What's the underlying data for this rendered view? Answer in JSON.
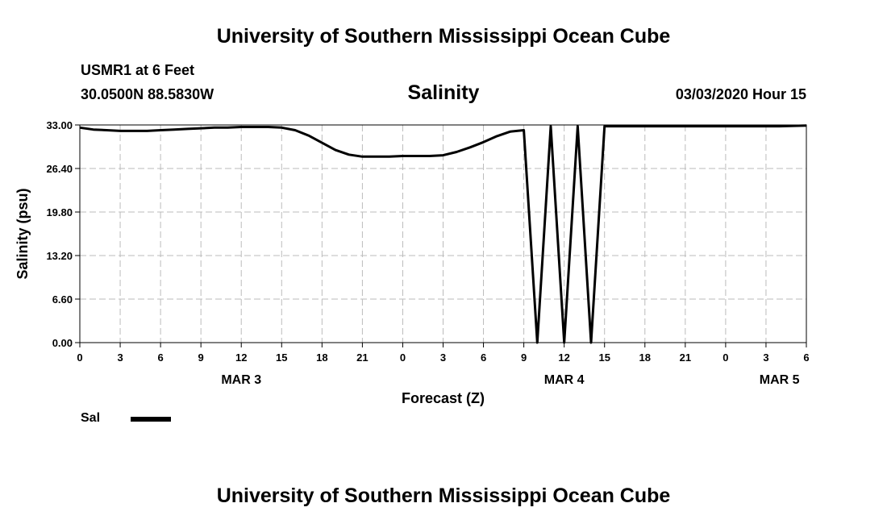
{
  "header": {
    "title": "University of Southern Mississippi Ocean Cube",
    "station": "USMR1 at 6 Feet",
    "coords": "30.0500N 88.5830W",
    "datetime": "03/03/2020 Hour 15",
    "footer_title": "University of Southern Mississippi Ocean Cube"
  },
  "chart_data": {
    "type": "line",
    "title": "Salinity",
    "xlabel": "Forecast (Z)",
    "ylabel": "Salinity (psu)",
    "ylim": [
      0,
      33
    ],
    "y_ticks": [
      "0.00",
      "6.60",
      "13.20",
      "19.80",
      "26.40",
      "33.00"
    ],
    "xlim_hours": [
      0,
      54
    ],
    "x_ticks": [
      "0",
      "3",
      "6",
      "9",
      "12",
      "15",
      "18",
      "21",
      "0",
      "3",
      "6",
      "9",
      "12",
      "15",
      "18",
      "21",
      "0",
      "3",
      "6"
    ],
    "date_labels": [
      {
        "label": "MAR 3",
        "hour": 12
      },
      {
        "label": "MAR 4",
        "hour": 36
      },
      {
        "label": "MAR 5",
        "hour": 52
      }
    ],
    "grid": true,
    "legend": {
      "position": "bottom-left"
    },
    "series": [
      {
        "name": "Sal",
        "color": "#000000",
        "points": [
          [
            0,
            32.6
          ],
          [
            1,
            32.3
          ],
          [
            2,
            32.2
          ],
          [
            3,
            32.1
          ],
          [
            4,
            32.1
          ],
          [
            5,
            32.1
          ],
          [
            6,
            32.2
          ],
          [
            7,
            32.3
          ],
          [
            8,
            32.4
          ],
          [
            9,
            32.5
          ],
          [
            10,
            32.6
          ],
          [
            11,
            32.6
          ],
          [
            12,
            32.7
          ],
          [
            13,
            32.7
          ],
          [
            14,
            32.7
          ],
          [
            15,
            32.6
          ],
          [
            16,
            32.2
          ],
          [
            17,
            31.4
          ],
          [
            18,
            30.3
          ],
          [
            19,
            29.2
          ],
          [
            20,
            28.5
          ],
          [
            21,
            28.2
          ],
          [
            22,
            28.2
          ],
          [
            23,
            28.2
          ],
          [
            24,
            28.3
          ],
          [
            25,
            28.3
          ],
          [
            26,
            28.3
          ],
          [
            27,
            28.4
          ],
          [
            28,
            28.9
          ],
          [
            29,
            29.6
          ],
          [
            30,
            30.4
          ],
          [
            31,
            31.3
          ],
          [
            32,
            32.0
          ],
          [
            33,
            32.2
          ],
          [
            34,
            0
          ],
          [
            35,
            32.8
          ],
          [
            36,
            0
          ],
          [
            37,
            32.8
          ],
          [
            38,
            0
          ],
          [
            39,
            32.8
          ],
          [
            40,
            32.8
          ],
          [
            42,
            32.8
          ],
          [
            44,
            32.8
          ],
          [
            46,
            32.8
          ],
          [
            48,
            32.8
          ],
          [
            50,
            32.8
          ],
          [
            52,
            32.8
          ],
          [
            54,
            32.9
          ]
        ]
      }
    ]
  }
}
